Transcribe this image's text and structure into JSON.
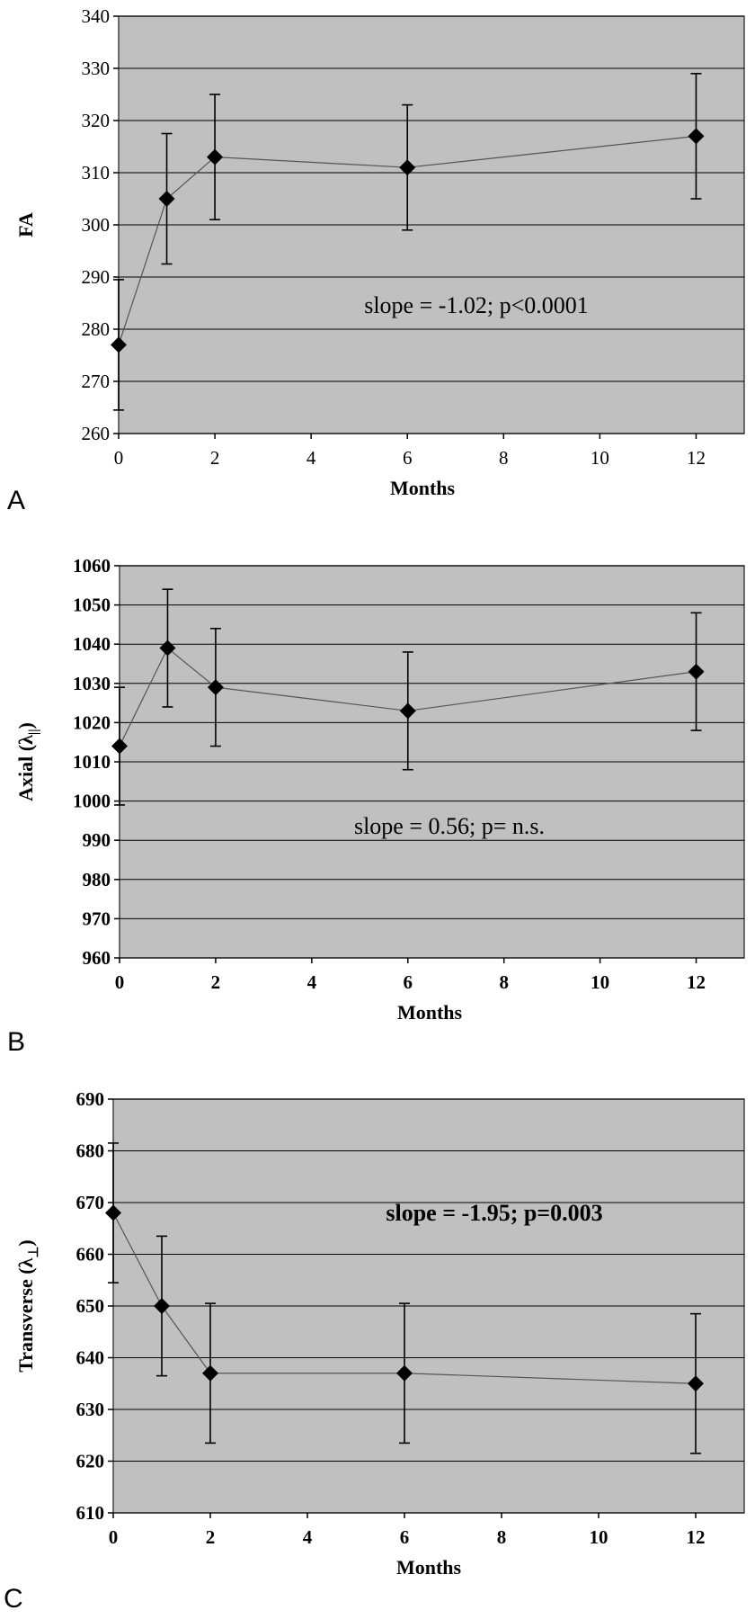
{
  "figure": {
    "panels_letters": [
      "A",
      "B",
      "C"
    ]
  },
  "colors": {
    "plot_bg": "#c0c0c0",
    "grid": "#000000",
    "marker": "#000000",
    "line": "#555555",
    "page": "#ffffff"
  },
  "chart_data": [
    {
      "type": "line",
      "panel_label": "A",
      "xlabel": "Months",
      "ylabel": "FA",
      "ylabel_sub": "",
      "xlim": [
        0,
        13
      ],
      "ylim": [
        260,
        340
      ],
      "xticks": [
        0,
        2,
        4,
        6,
        8,
        10,
        12
      ],
      "yticks": [
        260,
        270,
        280,
        290,
        300,
        310,
        320,
        330,
        340
      ],
      "tick_bold": false,
      "grid": true,
      "annotation": "slope = -1.02; p<0.0001",
      "annotation_bold": false,
      "series": [
        {
          "name": "FA",
          "x": [
            0,
            1,
            2,
            6,
            12
          ],
          "y": [
            277,
            305,
            313,
            311,
            317
          ],
          "err": [
            12.5,
            12.5,
            12,
            12,
            12
          ]
        }
      ]
    },
    {
      "type": "line",
      "panel_label": "B",
      "xlabel": "Months",
      "ylabel": "Axial (λ",
      "ylabel_sub": "||",
      "xlim": [
        0,
        13
      ],
      "ylim": [
        960,
        1060
      ],
      "xticks": [
        0,
        2,
        4,
        6,
        8,
        10,
        12
      ],
      "yticks": [
        960,
        970,
        980,
        990,
        1000,
        1010,
        1020,
        1030,
        1040,
        1050,
        1060
      ],
      "tick_bold": true,
      "grid": true,
      "annotation": "slope = 0.56; p= n.s.",
      "annotation_bold": false,
      "series": [
        {
          "name": "Axial",
          "x": [
            0,
            1,
            2,
            6,
            12
          ],
          "y": [
            1014,
            1039,
            1029,
            1023,
            1033
          ],
          "err": [
            15,
            15,
            15,
            15,
            15
          ]
        }
      ]
    },
    {
      "type": "line",
      "panel_label": "C",
      "xlabel": "Months",
      "ylabel": "Transverse (λ",
      "ylabel_sub": "⊥",
      "xlim": [
        0,
        13
      ],
      "ylim": [
        610,
        690
      ],
      "xticks": [
        0,
        2,
        4,
        6,
        8,
        10,
        12
      ],
      "yticks": [
        610,
        620,
        630,
        640,
        650,
        660,
        670,
        680,
        690
      ],
      "tick_bold": true,
      "grid": true,
      "annotation": "slope = -1.95; p=0.003",
      "annotation_bold": true,
      "series": [
        {
          "name": "Transverse",
          "x": [
            0,
            1,
            2,
            6,
            12
          ],
          "y": [
            668,
            650,
            637,
            637,
            635
          ],
          "err": [
            13.5,
            13.5,
            13.5,
            13.5,
            13.5
          ]
        }
      ]
    }
  ]
}
